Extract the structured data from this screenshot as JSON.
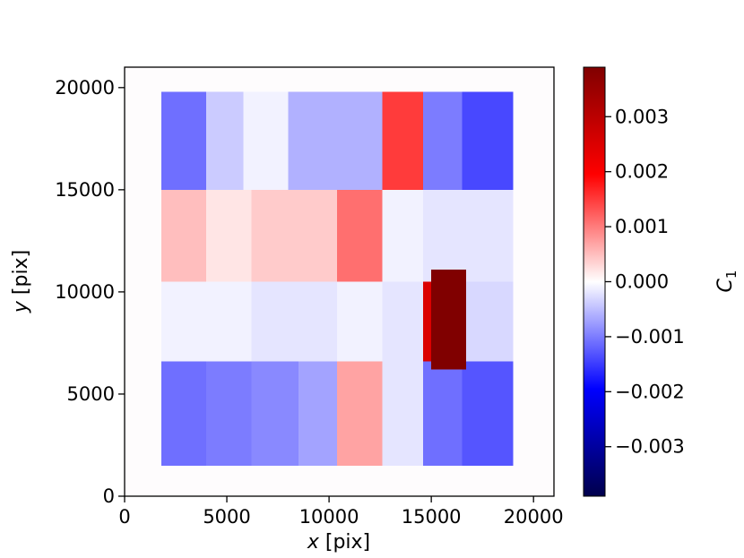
{
  "chart_data": {
    "type": "heatmap",
    "xlabel": {
      "var": "x",
      "unit": "[pix]"
    },
    "ylabel": {
      "var": "y",
      "unit": "[pix]"
    },
    "xlim": [
      0,
      21000
    ],
    "ylim": [
      0,
      21000
    ],
    "xticks": [
      0,
      5000,
      10000,
      15000,
      20000
    ],
    "yticks": [
      0,
      5000,
      10000,
      15000,
      20000
    ],
    "colorbar": {
      "label": {
        "base": "C",
        "sub": "1"
      },
      "range": [
        -0.0039,
        0.0039
      ],
      "ticks": [
        {
          "value": 0.003,
          "label": "0.003"
        },
        {
          "value": 0.002,
          "label": "0.002"
        },
        {
          "value": 0.001,
          "label": "0.001"
        },
        {
          "value": 0.0,
          "label": "0.000"
        },
        {
          "value": -0.001,
          "label": "−0.001"
        },
        {
          "value": -0.002,
          "label": "−0.002"
        },
        {
          "value": -0.003,
          "label": "−0.003"
        }
      ],
      "colormap": "seismic"
    },
    "cells": [
      {
        "x": [
          1800,
          4000
        ],
        "y": [
          15000,
          19800
        ],
        "value": -0.0011
      },
      {
        "x": [
          4000,
          5800
        ],
        "y": [
          15000,
          19800
        ],
        "value": -0.0004
      },
      {
        "x": [
          5800,
          8000
        ],
        "y": [
          15000,
          19800
        ],
        "value": -0.0001
      },
      {
        "x": [
          8000,
          10400
        ],
        "y": [
          15000,
          19800
        ],
        "value": -0.0006
      },
      {
        "x": [
          10400,
          12600
        ],
        "y": [
          15000,
          19800
        ],
        "value": -0.0006
      },
      {
        "x": [
          12600,
          14600
        ],
        "y": [
          15000,
          19800
        ],
        "value": 0.0015
      },
      {
        "x": [
          14600,
          16500
        ],
        "y": [
          15000,
          19800
        ],
        "value": -0.001
      },
      {
        "x": [
          16500,
          19000
        ],
        "y": [
          15000,
          19800
        ],
        "value": -0.0014
      },
      {
        "x": [
          1800,
          4000
        ],
        "y": [
          10500,
          15000
        ],
        "value": 0.0005
      },
      {
        "x": [
          4000,
          6200
        ],
        "y": [
          10500,
          15000
        ],
        "value": 0.0002
      },
      {
        "x": [
          6200,
          8500
        ],
        "y": [
          10500,
          15000
        ],
        "value": 0.0004
      },
      {
        "x": [
          8500,
          10400
        ],
        "y": [
          10500,
          15000
        ],
        "value": 0.0004
      },
      {
        "x": [
          10400,
          12600
        ],
        "y": [
          10500,
          15000
        ],
        "value": 0.0011
      },
      {
        "x": [
          12600,
          14600
        ],
        "y": [
          10500,
          15000
        ],
        "value": -0.0001
      },
      {
        "x": [
          14600,
          16500
        ],
        "y": [
          10500,
          15000
        ],
        "value": -0.0002
      },
      {
        "x": [
          16500,
          19000
        ],
        "y": [
          10500,
          15000
        ],
        "value": -0.0002
      },
      {
        "x": [
          1800,
          4000
        ],
        "y": [
          6600,
          10500
        ],
        "value": -0.0001
      },
      {
        "x": [
          4000,
          6200
        ],
        "y": [
          6600,
          10500
        ],
        "value": -0.0001
      },
      {
        "x": [
          6200,
          8500
        ],
        "y": [
          6600,
          10500
        ],
        "value": -0.0002
      },
      {
        "x": [
          8500,
          10400
        ],
        "y": [
          6600,
          10500
        ],
        "value": -0.0002
      },
      {
        "x": [
          10400,
          12600
        ],
        "y": [
          6600,
          10500
        ],
        "value": -0.0001
      },
      {
        "x": [
          12600,
          14600
        ],
        "y": [
          6600,
          10500
        ],
        "value": -0.0002
      },
      {
        "x": [
          14600,
          16500
        ],
        "y": [
          6600,
          10500
        ],
        "value": 0.0025
      },
      {
        "x": [
          16500,
          19000
        ],
        "y": [
          6600,
          10500
        ],
        "value": -0.0003
      },
      {
        "x": [
          1800,
          4000
        ],
        "y": [
          1500,
          6600
        ],
        "value": -0.0011
      },
      {
        "x": [
          4000,
          6200
        ],
        "y": [
          1500,
          6600
        ],
        "value": -0.001
      },
      {
        "x": [
          6200,
          8500
        ],
        "y": [
          1500,
          6600
        ],
        "value": -0.0009
      },
      {
        "x": [
          8500,
          10400
        ],
        "y": [
          1500,
          6600
        ],
        "value": -0.0007
      },
      {
        "x": [
          10400,
          12600
        ],
        "y": [
          1500,
          6600
        ],
        "value": 0.0007
      },
      {
        "x": [
          12600,
          14600
        ],
        "y": [
          1500,
          6600
        ],
        "value": -0.0002
      },
      {
        "x": [
          14600,
          16500
        ],
        "y": [
          1500,
          6600
        ],
        "value": -0.0011
      },
      {
        "x": [
          16500,
          19000
        ],
        "y": [
          1500,
          6600
        ],
        "value": -0.0013
      },
      {
        "x": [
          15000,
          16700
        ],
        "y": [
          6200,
          11100
        ],
        "value": 0.0039
      }
    ]
  }
}
